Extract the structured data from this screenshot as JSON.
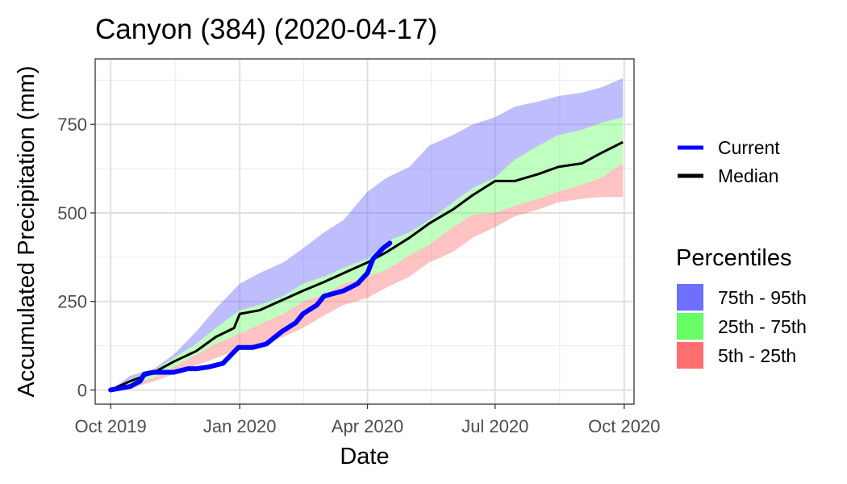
{
  "chart_data": {
    "type": "area",
    "title": "Canyon (384) (2020-04-17)",
    "xlabel": "Date",
    "ylabel": "Accumulated Precipitation (mm)",
    "x_ticks": [
      "Oct 2019",
      "Jan 2020",
      "Apr 2020",
      "Jul 2020",
      "Oct 2020"
    ],
    "x_tick_dates": [
      "2019-10-01",
      "2020-01-01",
      "2020-04-01",
      "2020-07-01",
      "2020-10-01"
    ],
    "xlim": [
      "2019-09-20",
      "2020-10-08"
    ],
    "y_ticks": [
      0,
      250,
      500,
      750
    ],
    "ylim": [
      -40,
      935
    ],
    "grid": true,
    "legend_position": "right",
    "colors": {
      "band_75_95": "#6e6eff",
      "band_25_75": "#66ff66",
      "band_5_25": "#ff6f6f",
      "current": "#0000ff",
      "median": "#000000"
    },
    "lines_legend": [
      {
        "label": "Current",
        "color": "#0000ff"
      },
      {
        "label": "Median",
        "color": "#000000"
      }
    ],
    "percentiles_legend": {
      "title": "Percentiles",
      "items": [
        {
          "label": "75th - 95th",
          "color": "#6e6eff"
        },
        {
          "label": "25th - 75th",
          "color": "#66ff66"
        },
        {
          "label": "5th - 25th",
          "color": "#ff6f6f"
        }
      ]
    },
    "band_dates": [
      "2019-10-01",
      "2019-10-15",
      "2019-11-01",
      "2019-11-15",
      "2019-12-01",
      "2019-12-15",
      "2020-01-01",
      "2020-01-15",
      "2020-02-01",
      "2020-02-15",
      "2020-03-01",
      "2020-03-15",
      "2020-04-01",
      "2020-04-15",
      "2020-05-01",
      "2020-05-15",
      "2020-06-01",
      "2020-06-15",
      "2020-07-01",
      "2020-07-15",
      "2020-08-01",
      "2020-08-15",
      "2020-09-01",
      "2020-09-15",
      "2020-09-30"
    ],
    "series": [
      {
        "name": "95th",
        "values": [
          0,
          40,
          60,
          100,
          165,
          230,
          300,
          330,
          360,
          400,
          445,
          480,
          560,
          600,
          630,
          690,
          720,
          750,
          770,
          800,
          815,
          830,
          840,
          855,
          880
        ]
      },
      {
        "name": "75th",
        "values": [
          0,
          30,
          55,
          90,
          130,
          175,
          225,
          240,
          265,
          300,
          320,
          345,
          370,
          420,
          445,
          480,
          530,
          570,
          600,
          650,
          690,
          720,
          735,
          755,
          770
        ]
      },
      {
        "name": "25th",
        "values": [
          0,
          15,
          35,
          65,
          100,
          130,
          160,
          185,
          215,
          250,
          270,
          300,
          320,
          340,
          380,
          410,
          460,
          495,
          500,
          520,
          540,
          560,
          580,
          600,
          640
        ]
      },
      {
        "name": "5th",
        "values": [
          0,
          5,
          25,
          45,
          70,
          90,
          115,
          130,
          150,
          175,
          210,
          240,
          260,
          290,
          320,
          360,
          390,
          430,
          460,
          490,
          510,
          530,
          540,
          545,
          545
        ]
      },
      {
        "name": "Median",
        "dates": [
          "2019-10-01",
          "2019-10-15",
          "2019-11-01",
          "2019-11-15",
          "2019-12-01",
          "2019-12-15",
          "2019-12-28",
          "2020-01-01",
          "2020-01-15",
          "2020-02-01",
          "2020-02-15",
          "2020-03-01",
          "2020-03-15",
          "2020-04-01",
          "2020-04-15",
          "2020-05-01",
          "2020-05-15",
          "2020-06-01",
          "2020-06-15",
          "2020-07-01",
          "2020-07-15",
          "2020-08-01",
          "2020-08-15",
          "2020-09-01",
          "2020-09-15",
          "2020-09-30"
        ],
        "values": [
          0,
          25,
          50,
          80,
          110,
          150,
          175,
          215,
          225,
          255,
          280,
          305,
          330,
          360,
          390,
          430,
          470,
          510,
          550,
          590,
          590,
          610,
          630,
          640,
          670,
          700
        ]
      },
      {
        "name": "Current",
        "dates": [
          "2019-10-01",
          "2019-10-08",
          "2019-10-15",
          "2019-10-22",
          "2019-10-25",
          "2019-11-01",
          "2019-11-15",
          "2019-11-25",
          "2019-12-01",
          "2019-12-10",
          "2019-12-20",
          "2019-12-31",
          "2020-01-10",
          "2020-01-20",
          "2020-01-31",
          "2020-02-10",
          "2020-02-15",
          "2020-02-25",
          "2020-03-01",
          "2020-03-15",
          "2020-03-25",
          "2020-04-01",
          "2020-04-05",
          "2020-04-12",
          "2020-04-17"
        ],
        "values": [
          0,
          5,
          10,
          25,
          45,
          50,
          50,
          60,
          60,
          65,
          75,
          120,
          120,
          130,
          165,
          190,
          215,
          240,
          265,
          280,
          300,
          330,
          370,
          400,
          415
        ]
      }
    ]
  }
}
